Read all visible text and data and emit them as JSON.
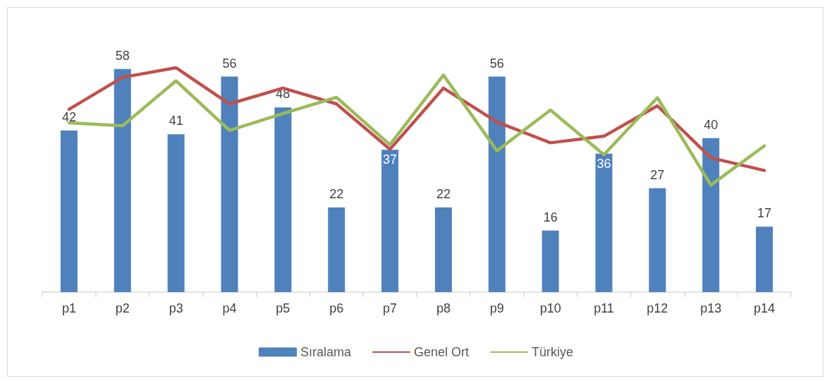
{
  "chart_data": {
    "type": "bar",
    "categories": [
      "p1",
      "p2",
      "p3",
      "p4",
      "p5",
      "p6",
      "p7",
      "p8",
      "p9",
      "p10",
      "p11",
      "p12",
      "p13",
      "p14"
    ],
    "series": [
      {
        "name": "Sıralama",
        "color": "#4f81bd",
        "values": [
          42,
          58,
          41,
          56,
          48,
          22,
          37,
          22,
          56,
          16,
          36,
          27,
          40,
          17
        ],
        "value_labels": [
          "42",
          "58",
          "41",
          "56",
          "48",
          "22",
          "37",
          "22",
          "56",
          "16",
          "36",
          "27",
          "40",
          "17"
        ]
      },
      {
        "name": "Genel Ort",
        "type": "line",
        "color": "#c0504d",
        "values": [
          47.5,
          55.8,
          58.3,
          48.9,
          53.0,
          48.9,
          37.1,
          53.0,
          44.2,
          38.8,
          40.5,
          48.4,
          34.9,
          31.6
        ]
      },
      {
        "name": "Türkiye",
        "type": "line",
        "color": "#9bbb59",
        "values": [
          44.0,
          43.2,
          54.9,
          42.0,
          46.4,
          50.6,
          38.3,
          56.4,
          36.7,
          47.3,
          35.7,
          50.5,
          27.8,
          38.0
        ]
      }
    ],
    "tick_labels": "x",
    "legend": "bottom"
  }
}
